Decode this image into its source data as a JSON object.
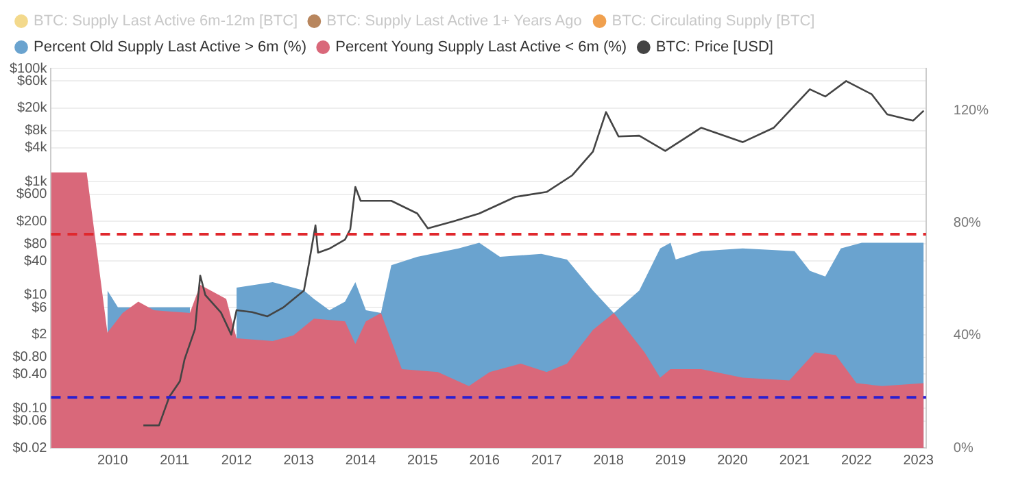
{
  "chart_data": {
    "type": "line",
    "legend": "top left",
    "grid": "y",
    "log": "y",
    "xlim": [
      "2009-01-03",
      "2023-02-15"
    ],
    "xticks": [
      "2010",
      "2011",
      "2012",
      "2013",
      "2014",
      "2015",
      "2016",
      "2017",
      "2018",
      "2019",
      "2020",
      "2021",
      "2022",
      "2023"
    ],
    "ylim": [
      0.02,
      100000
    ],
    "yticks": [
      {
        "value": 0.02,
        "label": "$0.02"
      },
      {
        "value": 0.06,
        "label": "$0.06"
      },
      {
        "value": 0.1,
        "label": "$0.10"
      },
      {
        "value": 0.4,
        "label": "$0.40"
      },
      {
        "value": 0.8,
        "label": "$0.80"
      },
      {
        "value": 2,
        "label": "$2"
      },
      {
        "value": 6,
        "label": "$6"
      },
      {
        "value": 10,
        "label": "$10"
      },
      {
        "value": 40,
        "label": "$40"
      },
      {
        "value": 80,
        "label": "$80"
      },
      {
        "value": 200,
        "label": "$200"
      },
      {
        "value": 600,
        "label": "$600"
      },
      {
        "value": 1000,
        "label": "$1k"
      },
      {
        "value": 4000,
        "label": "$4k"
      },
      {
        "value": 8000,
        "label": "$8k"
      },
      {
        "value": 20000,
        "label": "$20k"
      },
      {
        "value": 60000,
        "label": "$60k"
      },
      {
        "value": 100000,
        "label": "$100k"
      }
    ],
    "y2lim": [
      0,
      135
    ],
    "y2ticks": [
      {
        "value": 0,
        "label": "0%"
      },
      {
        "value": 40,
        "label": "40%"
      },
      {
        "value": 80,
        "label": "80%"
      },
      {
        "value": 120,
        "label": "120%"
      }
    ],
    "ref_lines": [
      {
        "axis": "y2",
        "value": 76,
        "color": "#e0282d",
        "line_style": "dashed"
      },
      {
        "axis": "y2",
        "value": 18,
        "color": "#2b1fd0",
        "line_style": "dashed"
      }
    ],
    "series": [
      {
        "name": "BTC: Supply Last Active 6m-12m [BTC]",
        "color": "#f3d98c"
      },
      {
        "name": "BTC: Supply Last Active 1+ Years Ago",
        "color": "#b8865e"
      },
      {
        "name": "BTC: Circulating Supply [BTC]",
        "color": "#f0a04e"
      },
      {
        "name": "Percent Old Supply Last Active > 6m (%)",
        "type": "area",
        "axis": "y2",
        "color": "#6aa3cf",
        "x": [
          "2009-12",
          "2010-02",
          "2010-08",
          "2011-04",
          "2011-06",
          "2011-11",
          "2012-01",
          "2012-08",
          "2013-02",
          "2013-04",
          "2013-07",
          "2013-10",
          "2013-12",
          "2014-02",
          "2014-05",
          "2014-07",
          "2014-12",
          "2015-08",
          "2015-12",
          "2016-04",
          "2016-12",
          "2017-05",
          "2017-10",
          "2018-02",
          "2018-07",
          "2018-11",
          "2019-01",
          "2019-02",
          "2019-07",
          "2020-03",
          "2021-01",
          "2021-04",
          "2021-07",
          "2021-10",
          "2022-02",
          "2022-10",
          "2023-02"
        ],
        "values": [
          56,
          50,
          50,
          50,
          null,
          null,
          57,
          59,
          56,
          53,
          49,
          52,
          59,
          49,
          48,
          65,
          68,
          71,
          73,
          68,
          69,
          67,
          56,
          48,
          56,
          71,
          73,
          67,
          70,
          71,
          70,
          63,
          61,
          71,
          73,
          73,
          73
        ]
      },
      {
        "name": "Percent Young Supply Last Active < 6m (%)",
        "type": "area",
        "axis": "y2",
        "color": "#d9687a",
        "x": [
          "2009-01-03",
          "2009-08",
          "2009-12",
          "2010-03",
          "2010-06",
          "2010-09",
          "2011-04",
          "2011-06",
          "2011-11",
          "2012-01",
          "2012-08",
          "2012-12",
          "2013-04",
          "2013-10",
          "2013-12",
          "2014-02",
          "2014-05",
          "2014-09",
          "2015-04",
          "2015-10",
          "2016-02",
          "2016-08",
          "2017-01",
          "2017-05",
          "2017-10",
          "2018-02",
          "2018-08",
          "2018-11",
          "2019-01",
          "2019-07",
          "2020-03",
          "2020-12",
          "2021-05",
          "2021-09",
          "2022-01",
          "2022-06",
          "2023-02"
        ],
        "values": [
          98,
          98,
          41,
          48,
          52,
          49,
          48,
          58,
          53,
          39,
          38,
          40,
          46,
          45,
          37,
          45,
          48,
          28,
          27,
          22,
          27,
          30,
          27,
          30,
          42,
          48,
          34,
          25,
          28,
          28,
          25,
          24,
          34,
          33,
          23,
          22,
          23
        ]
      },
      {
        "name": "BTC: Price [USD]",
        "axis": "y",
        "color": "#444444",
        "x": [
          "2010-07",
          "2010-10",
          "2010-12",
          "2011-02",
          "2011-03",
          "2011-05",
          "2011-06",
          "2011-07",
          "2011-10",
          "2011-12",
          "2012-01",
          "2012-04",
          "2012-07",
          "2012-10",
          "2013-02",
          "2013-03",
          "2013-04-10",
          "2013-04-25",
          "2013-07",
          "2013-10",
          "2013-11",
          "2013-12",
          "2014-01",
          "2014-07",
          "2014-12",
          "2015-02",
          "2015-07",
          "2015-12",
          "2016-07",
          "2017-01",
          "2017-06",
          "2017-10",
          "2017-12-17",
          "2018-03",
          "2018-07",
          "2018-12",
          "2019-07",
          "2020-03",
          "2020-09",
          "2021-04",
          "2021-07",
          "2021-11",
          "2022-04",
          "2022-07",
          "2022-12",
          "2023-02"
        ],
        "values": [
          0.05,
          0.05,
          0.16,
          0.3,
          0.74,
          2.5,
          22,
          10,
          4.9,
          2,
          5.4,
          5,
          4.2,
          6,
          12,
          34,
          170,
          56,
          66,
          95,
          145,
          810,
          460,
          460,
          275,
          150,
          200,
          275,
          540,
          660,
          1300,
          3400,
          17000,
          6300,
          6500,
          3500,
          9000,
          5000,
          9000,
          43000,
          32000,
          60000,
          35000,
          15500,
          12000,
          18000
        ]
      }
    ]
  }
}
